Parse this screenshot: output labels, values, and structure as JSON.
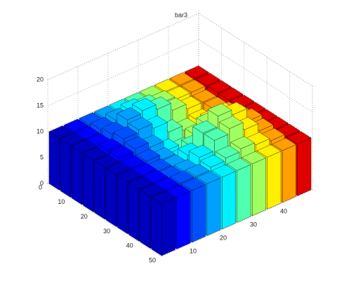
{
  "chart_data": {
    "type": "bar3",
    "title": "bar3",
    "x": [
      2.5,
      7.5,
      12.5,
      17.5,
      22.5,
      27.5,
      32.5,
      37.5,
      42.5,
      47.5
    ],
    "y": [
      2.5,
      7.5,
      12.5,
      17.5,
      22.5,
      27.5,
      32.5,
      37.5,
      42.5,
      47.5
    ],
    "z": [
      [
        10,
        10,
        10,
        10,
        10,
        10,
        10,
        10,
        10,
        10
      ],
      [
        10,
        10,
        10.5,
        11,
        11.5,
        11,
        10.5,
        10,
        10,
        10
      ],
      [
        10,
        10,
        11,
        12.5,
        13,
        12,
        10.5,
        9.5,
        9.5,
        10
      ],
      [
        10,
        10.5,
        11.5,
        12,
        11,
        9,
        8,
        8.5,
        9.5,
        10
      ],
      [
        10,
        10.5,
        11,
        10,
        8,
        7,
        8.5,
        10,
        10,
        10
      ],
      [
        10,
        10,
        10,
        9,
        7.5,
        9,
        12,
        12.5,
        11,
        10
      ],
      [
        10,
        10,
        9.5,
        9,
        10,
        13,
        15,
        14,
        11.5,
        10
      ],
      [
        10,
        10,
        9.5,
        9.5,
        11,
        13,
        14,
        12.5,
        11,
        10
      ],
      [
        10,
        10,
        10,
        10,
        10.5,
        11,
        11.5,
        11,
        10.5,
        10
      ],
      [
        10,
        10,
        10,
        10,
        10,
        10,
        10,
        10,
        10,
        10
      ]
    ],
    "colors": [
      "#0000bf",
      "#0000ff",
      "#0050ff",
      "#00a0ff",
      "#00f0ff",
      "#50ffaf",
      "#a0ff60",
      "#ffef00",
      "#ff9f00",
      "#df0000"
    ],
    "xlim": [
      0,
      50
    ],
    "xticks": [
      0,
      10,
      20,
      30,
      40,
      50
    ],
    "ylim": [
      0,
      50
    ],
    "yticks": [
      10,
      20,
      30,
      40
    ],
    "zlim": [
      0,
      20
    ],
    "zticks": [
      0,
      5,
      10,
      15,
      20
    ],
    "grid": true
  }
}
